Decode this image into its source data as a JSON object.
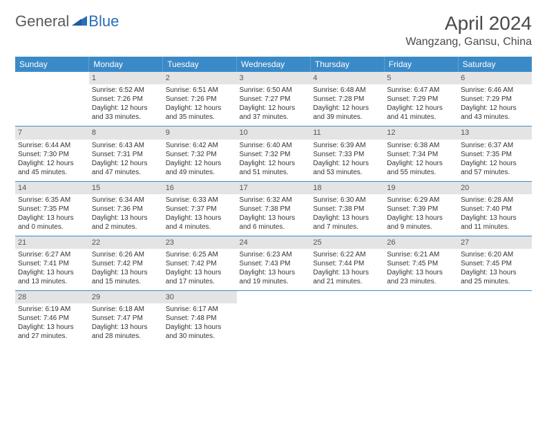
{
  "brand": {
    "part1": "General",
    "part2": "Blue"
  },
  "title": "April 2024",
  "location": "Wangzang, Gansu, China",
  "colors": {
    "header_bg": "#3b8ac8",
    "header_text": "#ffffff",
    "daynum_bg": "#e4e4e4",
    "daynum_text": "#555555",
    "row_border": "#3b8ac8",
    "body_text": "#333333",
    "brand_gray": "#5a5a5a",
    "brand_blue": "#2a6db8"
  },
  "dow": [
    "Sunday",
    "Monday",
    "Tuesday",
    "Wednesday",
    "Thursday",
    "Friday",
    "Saturday"
  ],
  "weeks": [
    [
      {
        "n": "",
        "sr": "",
        "ss": "",
        "dl": ""
      },
      {
        "n": "1",
        "sr": "Sunrise: 6:52 AM",
        "ss": "Sunset: 7:26 PM",
        "dl": "Daylight: 12 hours and 33 minutes."
      },
      {
        "n": "2",
        "sr": "Sunrise: 6:51 AM",
        "ss": "Sunset: 7:26 PM",
        "dl": "Daylight: 12 hours and 35 minutes."
      },
      {
        "n": "3",
        "sr": "Sunrise: 6:50 AM",
        "ss": "Sunset: 7:27 PM",
        "dl": "Daylight: 12 hours and 37 minutes."
      },
      {
        "n": "4",
        "sr": "Sunrise: 6:48 AM",
        "ss": "Sunset: 7:28 PM",
        "dl": "Daylight: 12 hours and 39 minutes."
      },
      {
        "n": "5",
        "sr": "Sunrise: 6:47 AM",
        "ss": "Sunset: 7:29 PM",
        "dl": "Daylight: 12 hours and 41 minutes."
      },
      {
        "n": "6",
        "sr": "Sunrise: 6:46 AM",
        "ss": "Sunset: 7:29 PM",
        "dl": "Daylight: 12 hours and 43 minutes."
      }
    ],
    [
      {
        "n": "7",
        "sr": "Sunrise: 6:44 AM",
        "ss": "Sunset: 7:30 PM",
        "dl": "Daylight: 12 hours and 45 minutes."
      },
      {
        "n": "8",
        "sr": "Sunrise: 6:43 AM",
        "ss": "Sunset: 7:31 PM",
        "dl": "Daylight: 12 hours and 47 minutes."
      },
      {
        "n": "9",
        "sr": "Sunrise: 6:42 AM",
        "ss": "Sunset: 7:32 PM",
        "dl": "Daylight: 12 hours and 49 minutes."
      },
      {
        "n": "10",
        "sr": "Sunrise: 6:40 AM",
        "ss": "Sunset: 7:32 PM",
        "dl": "Daylight: 12 hours and 51 minutes."
      },
      {
        "n": "11",
        "sr": "Sunrise: 6:39 AM",
        "ss": "Sunset: 7:33 PM",
        "dl": "Daylight: 12 hours and 53 minutes."
      },
      {
        "n": "12",
        "sr": "Sunrise: 6:38 AM",
        "ss": "Sunset: 7:34 PM",
        "dl": "Daylight: 12 hours and 55 minutes."
      },
      {
        "n": "13",
        "sr": "Sunrise: 6:37 AM",
        "ss": "Sunset: 7:35 PM",
        "dl": "Daylight: 12 hours and 57 minutes."
      }
    ],
    [
      {
        "n": "14",
        "sr": "Sunrise: 6:35 AM",
        "ss": "Sunset: 7:35 PM",
        "dl": "Daylight: 13 hours and 0 minutes."
      },
      {
        "n": "15",
        "sr": "Sunrise: 6:34 AM",
        "ss": "Sunset: 7:36 PM",
        "dl": "Daylight: 13 hours and 2 minutes."
      },
      {
        "n": "16",
        "sr": "Sunrise: 6:33 AM",
        "ss": "Sunset: 7:37 PM",
        "dl": "Daylight: 13 hours and 4 minutes."
      },
      {
        "n": "17",
        "sr": "Sunrise: 6:32 AM",
        "ss": "Sunset: 7:38 PM",
        "dl": "Daylight: 13 hours and 6 minutes."
      },
      {
        "n": "18",
        "sr": "Sunrise: 6:30 AM",
        "ss": "Sunset: 7:38 PM",
        "dl": "Daylight: 13 hours and 7 minutes."
      },
      {
        "n": "19",
        "sr": "Sunrise: 6:29 AM",
        "ss": "Sunset: 7:39 PM",
        "dl": "Daylight: 13 hours and 9 minutes."
      },
      {
        "n": "20",
        "sr": "Sunrise: 6:28 AM",
        "ss": "Sunset: 7:40 PM",
        "dl": "Daylight: 13 hours and 11 minutes."
      }
    ],
    [
      {
        "n": "21",
        "sr": "Sunrise: 6:27 AM",
        "ss": "Sunset: 7:41 PM",
        "dl": "Daylight: 13 hours and 13 minutes."
      },
      {
        "n": "22",
        "sr": "Sunrise: 6:26 AM",
        "ss": "Sunset: 7:42 PM",
        "dl": "Daylight: 13 hours and 15 minutes."
      },
      {
        "n": "23",
        "sr": "Sunrise: 6:25 AM",
        "ss": "Sunset: 7:42 PM",
        "dl": "Daylight: 13 hours and 17 minutes."
      },
      {
        "n": "24",
        "sr": "Sunrise: 6:23 AM",
        "ss": "Sunset: 7:43 PM",
        "dl": "Daylight: 13 hours and 19 minutes."
      },
      {
        "n": "25",
        "sr": "Sunrise: 6:22 AM",
        "ss": "Sunset: 7:44 PM",
        "dl": "Daylight: 13 hours and 21 minutes."
      },
      {
        "n": "26",
        "sr": "Sunrise: 6:21 AM",
        "ss": "Sunset: 7:45 PM",
        "dl": "Daylight: 13 hours and 23 minutes."
      },
      {
        "n": "27",
        "sr": "Sunrise: 6:20 AM",
        "ss": "Sunset: 7:45 PM",
        "dl": "Daylight: 13 hours and 25 minutes."
      }
    ],
    [
      {
        "n": "28",
        "sr": "Sunrise: 6:19 AM",
        "ss": "Sunset: 7:46 PM",
        "dl": "Daylight: 13 hours and 27 minutes."
      },
      {
        "n": "29",
        "sr": "Sunrise: 6:18 AM",
        "ss": "Sunset: 7:47 PM",
        "dl": "Daylight: 13 hours and 28 minutes."
      },
      {
        "n": "30",
        "sr": "Sunrise: 6:17 AM",
        "ss": "Sunset: 7:48 PM",
        "dl": "Daylight: 13 hours and 30 minutes."
      },
      {
        "n": "",
        "sr": "",
        "ss": "",
        "dl": ""
      },
      {
        "n": "",
        "sr": "",
        "ss": "",
        "dl": ""
      },
      {
        "n": "",
        "sr": "",
        "ss": "",
        "dl": ""
      },
      {
        "n": "",
        "sr": "",
        "ss": "",
        "dl": ""
      }
    ]
  ]
}
